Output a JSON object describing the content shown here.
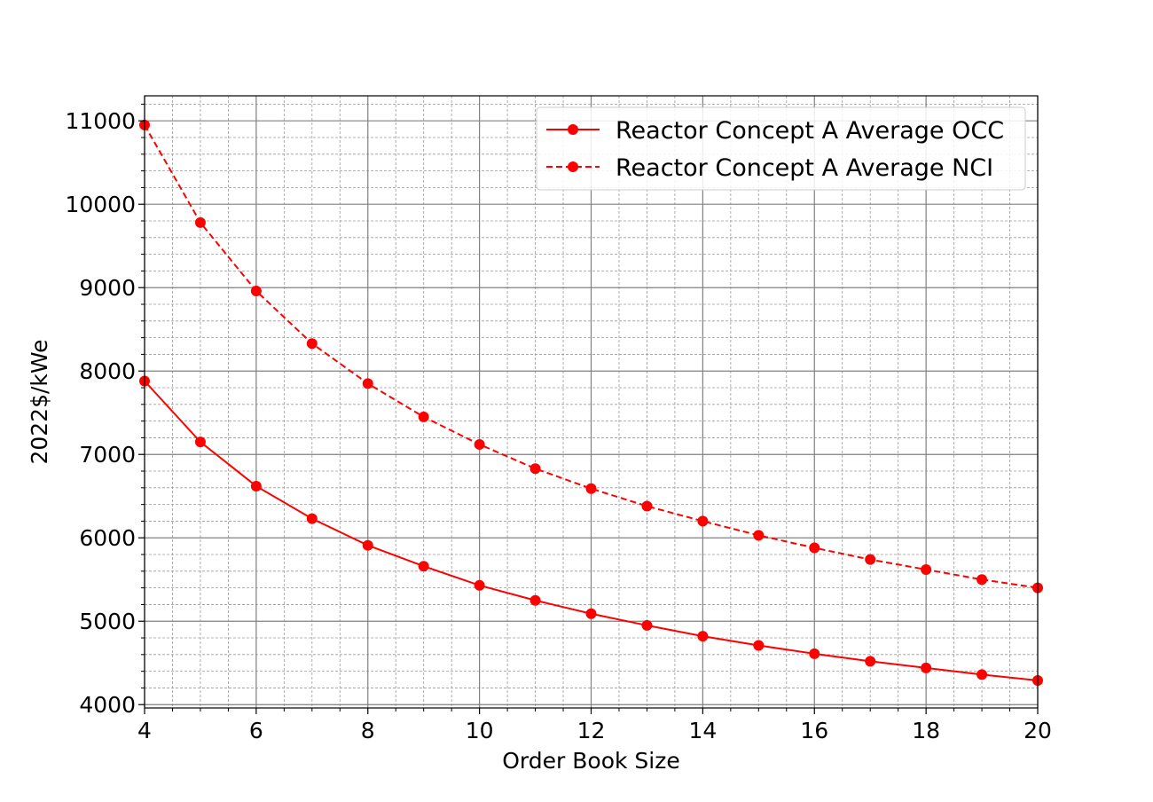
{
  "chart_data": {
    "type": "line",
    "xlabel": "Order Book Size",
    "ylabel": "2022$/kWe",
    "xlim": [
      4,
      20
    ],
    "ylim": [
      3960,
      11300
    ],
    "x_ticks": [
      4,
      6,
      8,
      10,
      12,
      14,
      16,
      18,
      20
    ],
    "x_minor_step": 0.5,
    "y_ticks": [
      4000,
      5000,
      6000,
      7000,
      8000,
      9000,
      10000,
      11000
    ],
    "y_minor_step": 200,
    "grid": true,
    "legend_position": "top-right",
    "x": [
      4,
      5,
      6,
      7,
      8,
      9,
      10,
      11,
      12,
      13,
      14,
      15,
      16,
      17,
      18,
      19,
      20
    ],
    "series": [
      {
        "name": "Reactor Concept A Average OCC",
        "style": "solid",
        "color": "#ff0000",
        "marker": "circle",
        "values": [
          7880,
          7150,
          6620,
          6230,
          5910,
          5660,
          5430,
          5250,
          5090,
          4950,
          4820,
          4710,
          4610,
          4520,
          4440,
          4360,
          4290
        ]
      },
      {
        "name": "Reactor Concept A Average NCI",
        "style": "dashed",
        "color": "#ff0000",
        "marker": "circle",
        "values": [
          10950,
          9780,
          8960,
          8330,
          7850,
          7450,
          7120,
          6830,
          6590,
          6380,
          6200,
          6030,
          5880,
          5740,
          5620,
          5500,
          5400
        ]
      }
    ]
  }
}
